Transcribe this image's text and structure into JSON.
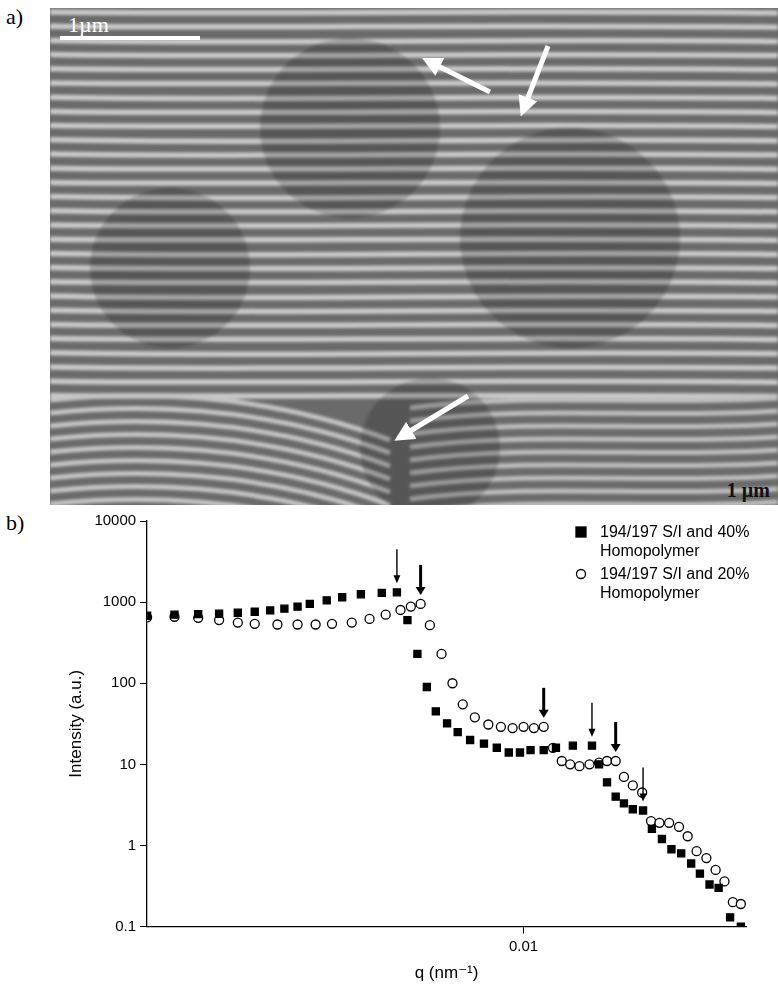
{
  "figure": {
    "panel_a": {
      "label": "a)",
      "scale_bar": "1µm",
      "corner_text": "1 µm"
    },
    "panel_b_label": "b)"
  },
  "chart_data": {
    "type": "scatter",
    "x_label": "q (nm⁻¹)",
    "y_label": "Intensity (a.u.)",
    "log": true,
    "grid": false,
    "legend": "top-right",
    "xlim": [
      0.0012,
      0.035
    ],
    "xticks": [
      0.01
    ],
    "ylim": [
      0.1,
      10000
    ],
    "yticks": [
      0.1,
      1,
      10,
      100,
      1000,
      10000
    ],
    "series": [
      {
        "name": "194/197 S/I and 40% Homopolymer",
        "color": "#000000",
        "marker": "square",
        "x": [
          0.0012,
          0.0014,
          0.0016,
          0.0018,
          0.002,
          0.0022,
          0.0024,
          0.0026,
          0.0028,
          0.003,
          0.0033,
          0.0036,
          0.004,
          0.0045,
          0.0049,
          0.0052,
          0.0055,
          0.0058,
          0.0061,
          0.0065,
          0.0069,
          0.0074,
          0.008,
          0.0086,
          0.0092,
          0.0098,
          0.0104,
          0.0112,
          0.012,
          0.0132,
          0.0147,
          0.0153,
          0.016,
          0.0168,
          0.0176,
          0.0185,
          0.0196,
          0.0206,
          0.0218,
          0.023,
          0.0243,
          0.0257,
          0.027,
          0.0285,
          0.03,
          0.032,
          0.034
        ],
        "values": [
          680,
          700,
          710,
          720,
          740,
          760,
          790,
          830,
          880,
          950,
          1050,
          1150,
          1250,
          1300,
          1320,
          600,
          230,
          90,
          45,
          32,
          25,
          20,
          18,
          16,
          14,
          14,
          15,
          15,
          16,
          17,
          17,
          10,
          6,
          4,
          3.3,
          2.8,
          2.7,
          1.6,
          1.2,
          0.9,
          0.8,
          0.6,
          0.45,
          0.33,
          0.3,
          0.13,
          0.1
        ],
        "peaks": [
          0.0049,
          0.0147,
          0.0196
        ]
      },
      {
        "name": "194/197 S/I and 20% Homopolymer",
        "color": "#000000",
        "marker": "open_circle",
        "x": [
          0.0012,
          0.0014,
          0.0016,
          0.0018,
          0.002,
          0.0022,
          0.0025,
          0.0028,
          0.0031,
          0.0034,
          0.0038,
          0.0042,
          0.0046,
          0.005,
          0.0053,
          0.0056,
          0.0059,
          0.0063,
          0.0067,
          0.0071,
          0.0076,
          0.0082,
          0.0088,
          0.0094,
          0.01,
          0.0106,
          0.0112,
          0.0118,
          0.0124,
          0.013,
          0.0137,
          0.0145,
          0.0153,
          0.016,
          0.0168,
          0.0176,
          0.0185,
          0.0195,
          0.0205,
          0.0215,
          0.0227,
          0.024,
          0.0252,
          0.0265,
          0.028,
          0.0295,
          0.031,
          0.0325,
          0.034
        ],
        "values": [
          650,
          660,
          640,
          600,
          560,
          540,
          530,
          530,
          530,
          540,
          560,
          620,
          700,
          800,
          880,
          950,
          520,
          230,
          100,
          55,
          38,
          31,
          29,
          28,
          29,
          28,
          29,
          16,
          11,
          10,
          9.5,
          10,
          10.5,
          11,
          11,
          7,
          5.5,
          4.5,
          2,
          1.9,
          1.9,
          1.7,
          1.3,
          0.85,
          0.7,
          0.5,
          0.36,
          0.2,
          0.19
        ],
        "peaks": [
          0.0056,
          0.0112,
          0.0168
        ]
      }
    ]
  }
}
